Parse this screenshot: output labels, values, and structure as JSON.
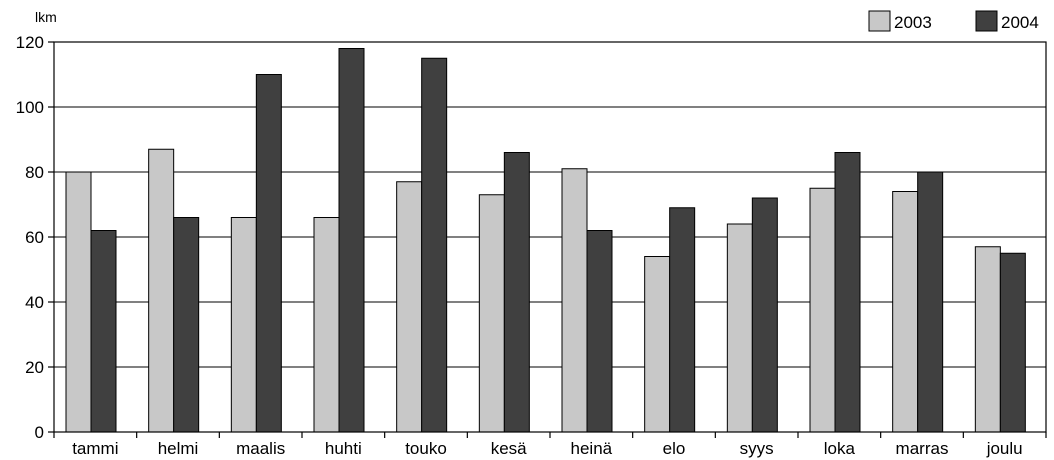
{
  "chart_data": {
    "type": "bar",
    "ylabel": "lkm",
    "ylim": [
      0,
      120
    ],
    "yticks": [
      0,
      20,
      40,
      60,
      80,
      100,
      120
    ],
    "categories": [
      "tammi",
      "helmi",
      "maalis",
      "huhti",
      "touko",
      "kesä",
      "heinä",
      "elo",
      "syys",
      "loka",
      "marras",
      "joulu"
    ],
    "series": [
      {
        "name": "2003",
        "values": [
          80,
          87,
          66,
          66,
          77,
          73,
          81,
          54,
          64,
          75,
          74,
          57
        ],
        "color": "#c8c8c8"
      },
      {
        "name": "2004",
        "values": [
          62,
          66,
          110,
          118,
          115,
          86,
          62,
          69,
          72,
          86,
          80,
          55
        ],
        "color": "#404040"
      }
    ],
    "grid": true,
    "legend_position": "top-right"
  }
}
